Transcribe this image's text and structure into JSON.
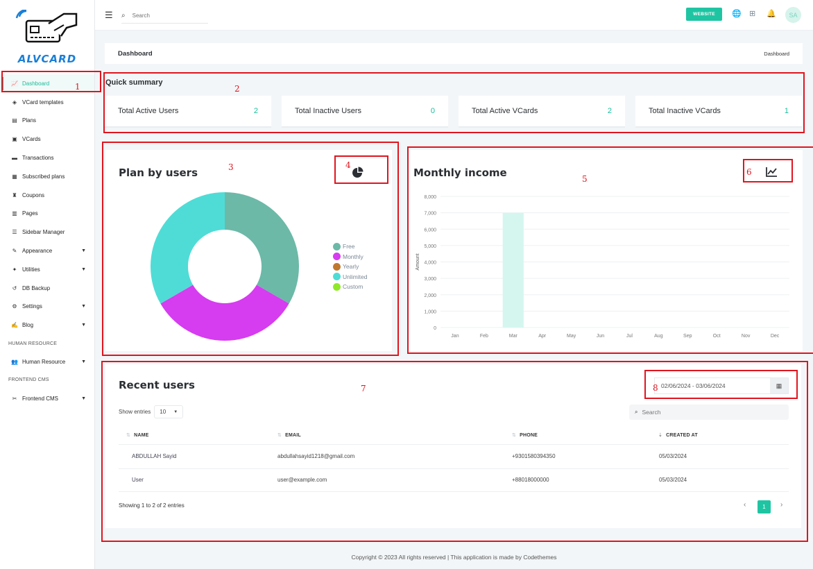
{
  "brand": {
    "name": "ALVCARD"
  },
  "sidebar": {
    "items": [
      {
        "label": "Dashboard",
        "icon": "chart-line-icon"
      },
      {
        "label": "VCard templates",
        "icon": "layers-icon"
      },
      {
        "label": "Plans",
        "icon": "file-icon"
      },
      {
        "label": "VCards",
        "icon": "id-card-icon"
      },
      {
        "label": "Transactions",
        "icon": "money-icon"
      },
      {
        "label": "Subscribed plans",
        "icon": "box-icon"
      },
      {
        "label": "Coupons",
        "icon": "coupon-icon"
      },
      {
        "label": "Pages",
        "icon": "book-icon"
      },
      {
        "label": "Sidebar Manager",
        "icon": "list-icon"
      },
      {
        "label": "Appearance",
        "icon": "brush-icon"
      },
      {
        "label": "Utilities",
        "icon": "wrench-icon"
      },
      {
        "label": "DB Backup",
        "icon": "backup-icon"
      },
      {
        "label": "Settings",
        "icon": "gears-icon"
      },
      {
        "label": "Blog",
        "icon": "blog-icon"
      }
    ],
    "section_hr": "HUMAN RESOURCE",
    "hr_item": "Human Resource",
    "section_cms": "FRONTEND CMS",
    "cms_item": "Frontend CMS"
  },
  "topbar": {
    "search_placeholder": "Search",
    "website_label": "WEBSITE",
    "avatar_initials": "SA"
  },
  "page": {
    "title": "Dashboard",
    "breadcrumb": "Dashboard"
  },
  "quick_summary": {
    "title": "Quick summary",
    "stats": [
      {
        "label": "Total Active Users",
        "value": "2"
      },
      {
        "label": "Total Inactive Users",
        "value": "0"
      },
      {
        "label": "Total Active VCards",
        "value": "2"
      },
      {
        "label": "Total Inactive VCards",
        "value": "1"
      }
    ]
  },
  "plan_by_users": {
    "title": "Plan by users",
    "legend": [
      {
        "label": "Free",
        "color": "#6cb9a8"
      },
      {
        "label": "Monthly",
        "color": "#d63cf0"
      },
      {
        "label": "Yearly",
        "color": "#c0782f"
      },
      {
        "label": "Unlimited",
        "color": "#4fdcd6"
      },
      {
        "label": "Custom",
        "color": "#90e82a"
      }
    ]
  },
  "chart_data": [
    {
      "type": "pie",
      "categories": [
        "Free",
        "Monthly",
        "Yearly",
        "Unlimited",
        "Custom"
      ],
      "values": [
        1,
        1,
        0,
        1,
        0
      ],
      "colors": [
        "#6cb9a8",
        "#d63cf0",
        "#c0782f",
        "#4fdcd6",
        "#90e82a"
      ],
      "legend": "right"
    },
    {
      "type": "bar",
      "title": "Monthly income",
      "ylabel": "Amount",
      "categories": [
        "Jan",
        "Feb",
        "Mar",
        "Apr",
        "May",
        "Jun",
        "Jul",
        "Aug",
        "Sep",
        "Oct",
        "Nov",
        "Dec"
      ],
      "values": [
        0,
        0,
        7000,
        0,
        0,
        0,
        0,
        0,
        0,
        0,
        0,
        0
      ],
      "ylim": [
        0,
        8000
      ],
      "yticks": [
        "0",
        "1,000",
        "2,000",
        "3,000",
        "4,000",
        "5,000",
        "6,000",
        "7,000",
        "8,000"
      ],
      "grid": true,
      "color": "#d5f6ef"
    }
  ],
  "monthly_income": {
    "title": "Monthly income"
  },
  "recent_users": {
    "title": "Recent users",
    "date_range": "02/06/2024 - 03/06/2024",
    "show_entries_label": "Show entries",
    "entries_value": "10",
    "search_placeholder": "Search",
    "columns": [
      "NAME",
      "EMAIL",
      "PHONE",
      "CREATED AT"
    ],
    "rows": [
      {
        "name": "ABDULLAH Sayid",
        "email": "abdullahsayid1218@gmail.com",
        "phone": "+9301580394350",
        "created": "05/03/2024"
      },
      {
        "name": "User",
        "email": "user@example.com",
        "phone": "+88018000000",
        "created": "05/03/2024"
      }
    ],
    "showing": "Showing 1 to 2 of 2 entries",
    "page": "1"
  },
  "annotations": [
    "1",
    "2",
    "3",
    "4",
    "5",
    "6",
    "7",
    "8"
  ],
  "footer": "Copyright © 2023 All rights reserved | This application is made by Codethemes"
}
